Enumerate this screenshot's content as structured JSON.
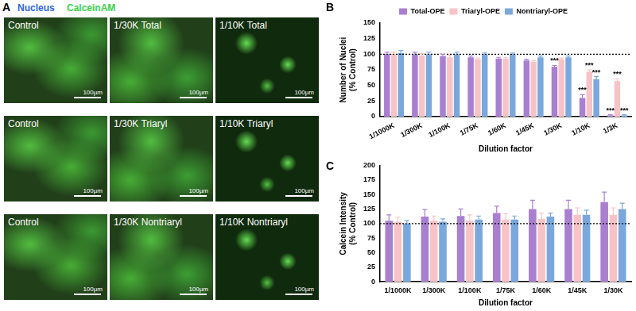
{
  "panel_labels": [
    "A",
    "B",
    "C"
  ],
  "panel_a": {
    "legend": [
      {
        "text": "Nucleus",
        "color": "#2f64e0"
      },
      {
        "text": "CalceinAM",
        "color": "#39d14a"
      }
    ],
    "rows": [
      [
        "Control",
        "1/30K Total",
        "1/10K Total"
      ],
      [
        "Control",
        "1/30K Triaryl",
        "1/10K Triaryl"
      ],
      [
        "Control",
        "1/30K Nontriaryl",
        "1/10K Nontriaryl"
      ]
    ],
    "scale_bar": "100µm"
  },
  "chart_data": [
    {
      "type": "bar",
      "x_label": "Dilution factor",
      "y_label": [
        "Number of Nuclei",
        "(% Control)"
      ],
      "categories": [
        "1/1000K",
        "1/300K",
        "1/100K",
        "1/75K",
        "1/60K",
        "1/45K",
        "1/30K",
        "1/10K",
        "1/3K"
      ],
      "series": [
        {
          "name": "Total-OPE",
          "color": "#a97fcf",
          "values": [
            100,
            100,
            97,
            95,
            93,
            90,
            80,
            30,
            2
          ],
          "errors": [
            3,
            3,
            3,
            2,
            2,
            2,
            2,
            5,
            1
          ]
        },
        {
          "name": "Triaryl-OPE",
          "color": "#f8c3c6",
          "values": [
            100,
            98,
            95,
            92,
            93,
            88,
            92,
            72,
            57
          ],
          "errors": [
            3,
            3,
            3,
            2,
            2,
            2,
            2,
            3,
            4
          ]
        },
        {
          "name": "Nontriaryl-OPE",
          "color": "#7aa8dc",
          "values": [
            102,
            100,
            100,
            100,
            100,
            95,
            95,
            60,
            2
          ],
          "errors": [
            4,
            3,
            3,
            2,
            2,
            2,
            2,
            4,
            1
          ]
        }
      ],
      "ylim": [
        0,
        150
      ],
      "yticks": [
        0,
        25,
        50,
        75,
        100,
        125,
        150
      ],
      "reference_line": 100,
      "grid": false,
      "legend": "top",
      "annotations": [
        {
          "text": "***",
          "category": "1/30K",
          "series": "Total-OPE"
        },
        {
          "text": "***",
          "category": "1/10K",
          "series": "Total-OPE"
        },
        {
          "text": "***",
          "category": "1/10K",
          "series": "Triaryl-OPE"
        },
        {
          "text": "***",
          "category": "1/10K",
          "series": "Nontriaryl-OPE"
        },
        {
          "text": "***",
          "category": "1/3K",
          "series": "Total-OPE"
        },
        {
          "text": "***",
          "category": "1/3K",
          "series": "Triaryl-OPE"
        },
        {
          "text": "***",
          "category": "1/3K",
          "series": "Nontriaryl-OPE"
        }
      ]
    },
    {
      "type": "bar",
      "x_label": "Dilution factor",
      "y_label": [
        "Calcein Intensity",
        "(% Control)"
      ],
      "categories": [
        "1/1000K",
        "1/300K",
        "1/100K",
        "1/75K",
        "1/60K",
        "1/45K",
        "1/30K"
      ],
      "series": [
        {
          "name": "Total-OPE",
          "color": "#a97fcf",
          "values": [
            105,
            112,
            113,
            118,
            125,
            125,
            137
          ],
          "errors": [
            10,
            12,
            12,
            12,
            15,
            15,
            17
          ]
        },
        {
          "name": "Triaryl-OPE",
          "color": "#f8c3c6",
          "values": [
            103,
            105,
            105,
            107,
            108,
            115,
            115
          ],
          "errors": [
            8,
            8,
            10,
            10,
            10,
            12,
            12
          ]
        },
        {
          "name": "Nontriaryl-OPE",
          "color": "#7aa8dc",
          "values": [
            100,
            103,
            107,
            107,
            112,
            115,
            125
          ],
          "errors": [
            5,
            5,
            6,
            6,
            6,
            8,
            10
          ]
        }
      ],
      "ylim": [
        0,
        200
      ],
      "yticks": [
        0,
        25,
        50,
        75,
        100,
        125,
        150,
        175,
        200
      ],
      "reference_line": 100,
      "grid": false
    }
  ]
}
